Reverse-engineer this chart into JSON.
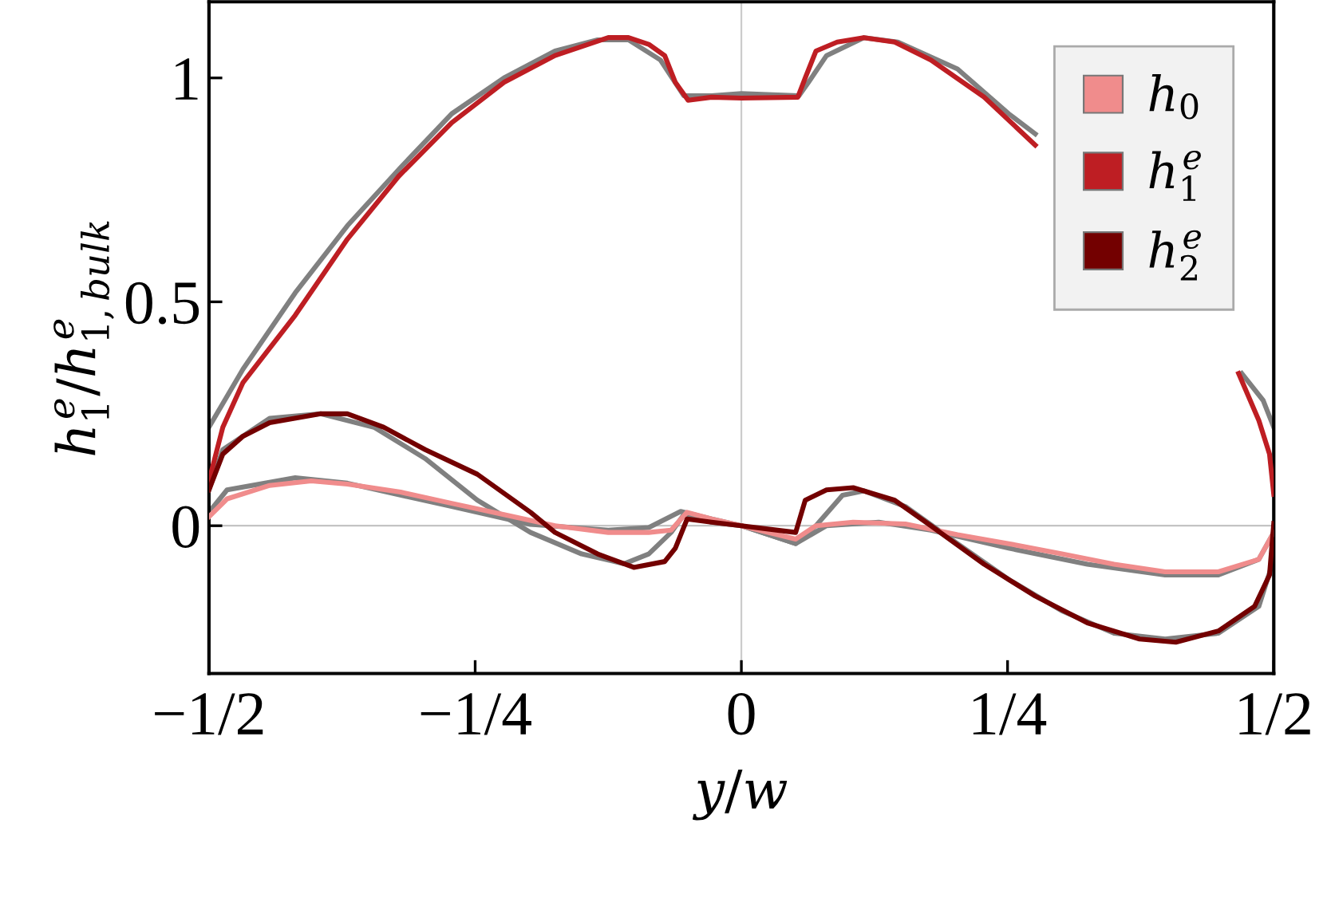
{
  "chart_data": {
    "type": "line",
    "xlabel": "y/w",
    "ylabel": "h$^{e}$$_{1}$/h$^{e}$$_{1,bulk}$",
    "xlim": [
      -0.5,
      0.5
    ],
    "ylim": [
      -0.33,
      1.17
    ],
    "xticks": [
      {
        "value": -0.5,
        "label": "−1/2"
      },
      {
        "value": -0.25,
        "label": "−1/4"
      },
      0,
      {
        "value": 0.25,
        "label": "1/4"
      },
      {
        "value": 0.5,
        "label": "1/2"
      }
    ],
    "yticks": [
      0,
      0.5,
      1
    ],
    "grid": false,
    "legend": "top right",
    "marker": "none",
    "line_style": "solid",
    "ref_lines": [
      {
        "axis": "x",
        "value": 0,
        "color": "#cccccc"
      },
      {
        "axis": "y",
        "value": 0,
        "color": "#c4c4c4"
      }
    ],
    "series": [
      {
        "color": "#808080",
        "x": [
          -0.5,
          -0.468,
          -0.419,
          -0.37,
          -0.32,
          -0.272,
          -0.223,
          -0.175,
          -0.135,
          -0.106,
          -0.076,
          -0.054,
          -0.028,
          0,
          0.054,
          0.063,
          0.08,
          0.115,
          0.147,
          0.203,
          0.251,
          0.276,
          0.37,
          0.47,
          0.49,
          0.5
        ],
        "values": [
          0.22,
          0.35,
          0.52,
          0.67,
          0.8,
          0.92,
          1.0,
          1.06,
          1.085,
          1.085,
          1.04,
          0.96,
          0.96,
          0.965,
          0.96,
          0.99,
          1.05,
          1.09,
          1.08,
          1.02,
          0.92,
          0.875,
          null,
          0.34,
          0.28,
          0.22
        ]
      },
      {
        "color": "#808080",
        "x": [
          -0.5,
          -0.487,
          -0.443,
          -0.395,
          -0.345,
          -0.297,
          -0.248,
          -0.198,
          -0.15,
          -0.11,
          -0.087,
          -0.066,
          -0.054,
          -0.028,
          0,
          0.051,
          0.07,
          0.095,
          0.115,
          0.154,
          0.203,
          0.251,
          0.301,
          0.35,
          0.398,
          0.448,
          0.486,
          0.5
        ],
        "values": [
          0.08,
          0.17,
          0.24,
          0.25,
          0.22,
          0.15,
          0.057,
          -0.015,
          -0.063,
          -0.085,
          -0.063,
          -0.015,
          0.025,
          0.008,
          0,
          -0.04,
          0,
          0.068,
          0.078,
          0.043,
          -0.04,
          -0.12,
          -0.19,
          -0.24,
          -0.253,
          -0.24,
          -0.18,
          -0.075
        ]
      },
      {
        "color": "#808080",
        "x": [
          -0.5,
          -0.483,
          -0.419,
          -0.37,
          -0.272,
          -0.198,
          -0.125,
          -0.087,
          -0.057,
          -0.028,
          0,
          0.051,
          0.08,
          0.129,
          0.178,
          0.251,
          0.325,
          0.398,
          0.448,
          0.486,
          0.5
        ],
        "values": [
          0.03,
          0.08,
          0.107,
          0.095,
          0.043,
          0.003,
          -0.01,
          -0.004,
          0.032,
          0.015,
          0,
          -0.04,
          0,
          0.008,
          -0.01,
          -0.05,
          -0.086,
          -0.11,
          -0.11,
          -0.075,
          -0.015
        ]
      },
      {
        "name": "h$_{0}$",
        "color": "#f08c8c",
        "x": [
          -0.5,
          -0.483,
          -0.443,
          -0.404,
          -0.37,
          -0.32,
          -0.272,
          -0.223,
          -0.175,
          -0.125,
          -0.087,
          -0.066,
          -0.051,
          -0.028,
          0,
          0.051,
          0.07,
          0.105,
          0.154,
          0.203,
          0.251,
          0.301,
          0.35,
          0.398,
          0.448,
          0.486,
          0.5
        ],
        "values": [
          0.02,
          0.06,
          0.09,
          0.1,
          0.093,
          0.075,
          0.05,
          0.025,
          0,
          -0.015,
          -0.015,
          -0.01,
          0.03,
          0.015,
          0,
          -0.03,
          0,
          0.008,
          0.004,
          -0.02,
          -0.04,
          -0.063,
          -0.086,
          -0.103,
          -0.103,
          -0.075,
          -0.015
        ]
      },
      {
        "name": "h$^{e}$$_{1}$",
        "color": "#be1e23",
        "x": [
          -0.5,
          -0.487,
          -0.468,
          -0.419,
          -0.37,
          -0.322,
          -0.272,
          -0.223,
          -0.175,
          -0.125,
          -0.106,
          -0.087,
          -0.072,
          -0.062,
          -0.05,
          -0.028,
          0,
          0.053,
          0.06,
          0.07,
          0.09,
          0.115,
          0.144,
          0.178,
          0.228,
          0.276,
          0.37,
          0.467,
          0.486,
          0.496,
          0.5
        ],
        "values": [
          0.1,
          0.22,
          0.32,
          0.47,
          0.64,
          0.78,
          0.9,
          0.99,
          1.05,
          1.09,
          1.09,
          1.075,
          1.05,
          0.99,
          0.95,
          0.957,
          0.955,
          0.957,
          1.0,
          1.06,
          1.08,
          1.09,
          1.08,
          1.04,
          0.957,
          0.85,
          null,
          0.34,
          0.235,
          0.16,
          0.07
        ]
      },
      {
        "name": "h$^{e}$$_{2}$",
        "color": "#730000",
        "x": [
          -0.5,
          -0.487,
          -0.468,
          -0.443,
          -0.395,
          -0.37,
          -0.336,
          -0.297,
          -0.248,
          -0.198,
          -0.175,
          -0.135,
          -0.101,
          -0.072,
          -0.062,
          -0.051,
          -0.028,
          0,
          0.051,
          0.06,
          0.08,
          0.105,
          0.144,
          0.178,
          0.228,
          0.276,
          0.325,
          0.374,
          0.408,
          0.448,
          0.482,
          0.496,
          0.5
        ],
        "values": [
          0.08,
          0.16,
          0.2,
          0.23,
          0.25,
          0.25,
          0.22,
          0.17,
          0.115,
          0.03,
          -0.015,
          -0.063,
          -0.093,
          -0.08,
          -0.05,
          0.015,
          0.008,
          0,
          -0.015,
          0.057,
          0.08,
          0.085,
          0.057,
          0,
          -0.086,
          -0.157,
          -0.217,
          -0.253,
          -0.26,
          -0.235,
          -0.18,
          -0.11,
          0.005
        ]
      }
    ]
  }
}
